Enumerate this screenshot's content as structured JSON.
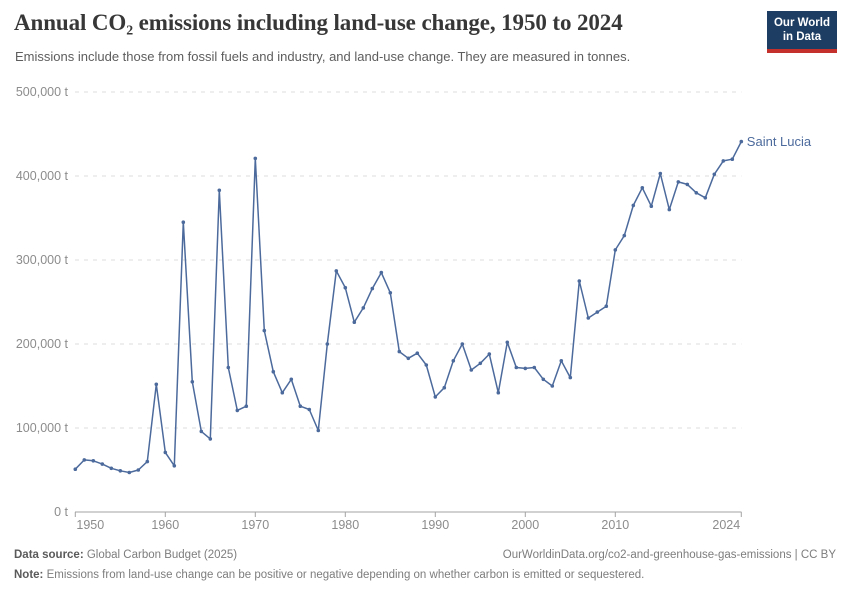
{
  "header": {
    "title": "Annual CO₂ emissions including land-use change, 1950 to 2024",
    "subtitle": "Emissions include those from fossil fuels and industry, and land-use change. They are measured in tonnes.",
    "logo": {
      "line1": "Our World",
      "line2": "in Data",
      "bg_color": "#1d3d63",
      "bar_color": "#c4302b"
    }
  },
  "chart_data": {
    "type": "line",
    "title": "Annual CO₂ emissions including land-use change, 1950 to 2024",
    "xlabel": "",
    "ylabel": "",
    "xlim": [
      1950,
      2024
    ],
    "ylim": [
      0,
      500000
    ],
    "grid": true,
    "legend_position": "end-of-line",
    "xticks": [
      1950,
      1960,
      1970,
      1980,
      1990,
      2000,
      2010,
      2024
    ],
    "yticks": [
      0,
      100000,
      200000,
      300000,
      400000,
      500000
    ],
    "ytick_labels": [
      "0 t",
      "100,000 t",
      "200,000 t",
      "300,000 t",
      "400,000 t",
      "500,000 t"
    ],
    "colors": {
      "grid": "#dedede",
      "axis": "#a3a3a3",
      "tick_text": "#8c8c8c"
    },
    "series": [
      {
        "name": "Saint Lucia",
        "color": "#4C6A9C",
        "x": [
          1950,
          1951,
          1952,
          1953,
          1954,
          1955,
          1956,
          1957,
          1958,
          1959,
          1960,
          1961,
          1962,
          1963,
          1964,
          1965,
          1966,
          1967,
          1968,
          1969,
          1970,
          1971,
          1972,
          1973,
          1974,
          1975,
          1976,
          1977,
          1978,
          1979,
          1980,
          1981,
          1982,
          1983,
          1984,
          1985,
          1986,
          1987,
          1988,
          1989,
          1990,
          1991,
          1992,
          1993,
          1994,
          1995,
          1996,
          1997,
          1998,
          1999,
          2000,
          2001,
          2002,
          2003,
          2004,
          2005,
          2006,
          2007,
          2008,
          2009,
          2010,
          2011,
          2012,
          2013,
          2014,
          2015,
          2016,
          2017,
          2018,
          2019,
          2020,
          2021,
          2022,
          2023,
          2024
        ],
        "values": [
          51000,
          62000,
          61000,
          57000,
          52000,
          49000,
          47000,
          50000,
          60000,
          152000,
          71000,
          55000,
          345000,
          155000,
          96000,
          87000,
          383000,
          172000,
          121000,
          126000,
          421000,
          216000,
          167000,
          142000,
          158000,
          126000,
          122000,
          97000,
          200000,
          287000,
          267000,
          226000,
          243000,
          266000,
          285000,
          261000,
          191000,
          183000,
          189000,
          175000,
          137000,
          148000,
          180000,
          200000,
          169000,
          177000,
          188000,
          142000,
          202000,
          172000,
          171000,
          172000,
          158000,
          150000,
          180000,
          160000,
          275000,
          231000,
          238000,
          245000,
          312000,
          329000,
          365000,
          386000,
          364000,
          403000,
          360000,
          393000,
          390000,
          380000,
          374000,
          402000,
          418000,
          420000,
          441000
        ]
      }
    ]
  },
  "footer": {
    "source_label": "Data source:",
    "source_value": " Global Carbon Budget (2025)",
    "link_text": "OurWorldinData.org/co2-and-greenhouse-gas-emissions | CC BY",
    "note_label": "Note:",
    "note_value": " Emissions from land-use change can be positive or negative depending on whether carbon is emitted or sequestered."
  }
}
